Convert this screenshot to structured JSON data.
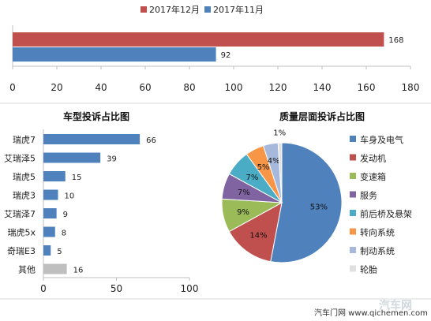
{
  "top_chart": {
    "legend": [
      {
        "label": "2017年12月",
        "color": "#c0504d"
      },
      {
        "label": "2017年11月",
        "color": "#4f81bd"
      }
    ],
    "axis_ticks": [
      "0",
      "20",
      "40",
      "60",
      "80",
      "100",
      "120",
      "140",
      "160",
      "180"
    ]
  },
  "left_chart": {
    "title": "车型投诉占比图",
    "axis_ticks": [
      "0",
      "50",
      "100"
    ]
  },
  "right_chart": {
    "title": "质量层面投诉占比图"
  },
  "footer": {
    "source": "汽车门网 www.qichemen.com",
    "watermark": "汽车网"
  },
  "chart_data": [
    {
      "type": "bar",
      "orientation": "horizontal",
      "categories": [
        ""
      ],
      "series": [
        {
          "name": "2017年12月",
          "values": [
            168
          ],
          "color": "#c0504d"
        },
        {
          "name": "2017年11月",
          "values": [
            92
          ],
          "color": "#4f81bd"
        }
      ],
      "xlim": [
        0,
        180
      ],
      "ticks": [
        0,
        20,
        40,
        60,
        80,
        100,
        120,
        140,
        160,
        180
      ],
      "legend": "top",
      "grid": false
    },
    {
      "type": "bar",
      "orientation": "horizontal",
      "title": "车型投诉占比图",
      "categories": [
        "瑞虎7",
        "艾瑞泽5",
        "瑞虎5",
        "瑞虎3",
        "艾瑞泽7",
        "瑞虎5x",
        "奇瑞E3",
        "其他"
      ],
      "values": [
        66,
        39,
        15,
        10,
        9,
        8,
        5,
        16
      ],
      "colors": [
        "#4f81bd",
        "#4f81bd",
        "#4f81bd",
        "#4f81bd",
        "#4f81bd",
        "#4f81bd",
        "#4f81bd",
        "#bfbfbf"
      ],
      "xlim": [
        0,
        100
      ],
      "ticks": [
        0,
        50,
        100
      ],
      "grid": false
    },
    {
      "type": "pie",
      "title": "质量层面投诉占比图",
      "categories": [
        "车身及电气",
        "发动机",
        "变速箱",
        "服务",
        "前后桥及悬架",
        "转向系统",
        "制动系统",
        "轮胎"
      ],
      "values": [
        53,
        14,
        9,
        7,
        7,
        5,
        4,
        1
      ],
      "labels": [
        "53%",
        "14%",
        "9%",
        "7%",
        "7%",
        "5%",
        "4%",
        "1%"
      ],
      "colors": [
        "#4f81bd",
        "#c0504d",
        "#9bbb59",
        "#8064a2",
        "#4bacc6",
        "#f79646",
        "#a6b9dc",
        "#e0e0e0"
      ],
      "legend": "right"
    }
  ]
}
